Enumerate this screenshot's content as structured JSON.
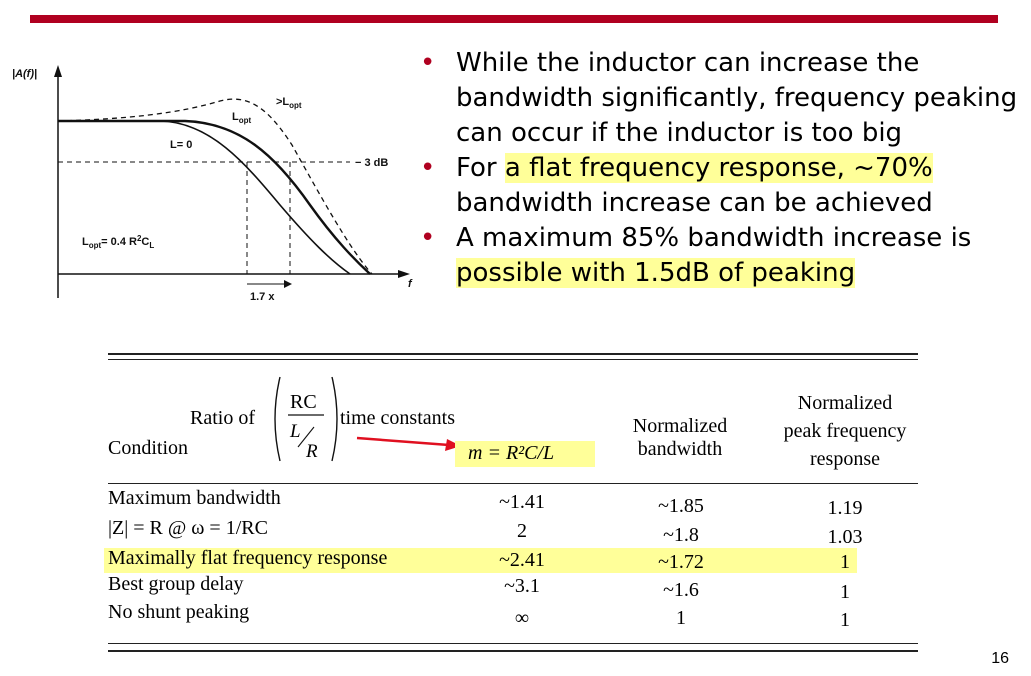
{
  "figure": {
    "y_axis_label": "|A(f)|",
    "x_axis_label": "f",
    "label_gt_lopt": ">L",
    "label_gt_lopt_sub": "opt",
    "label_lopt": "L",
    "label_lopt_sub": "opt",
    "label_l0": "L= 0",
    "label_3db": "− 3 dB",
    "label_formula_lhs": "L",
    "label_formula_sub": "opt",
    "label_formula_rhs": "= 0.4 R",
    "label_formula_exp": "2",
    "label_formula_c": "C",
    "label_formula_c_sub": "L",
    "label_17x": "1.7 x"
  },
  "bullets": [
    {
      "text": "While the inductor can increase the bandwidth significantly, frequency peaking can occur if the inductor is too big"
    },
    {
      "pre": "For ",
      "highlight": "a flat frequency response, ~70%",
      "post": " bandwidth increase can be achieved"
    },
    {
      "pre": "A maximum 85% bandwidth increase is ",
      "highlight": "possible with 1.5dB of peaking",
      "post": ""
    }
  ],
  "table": {
    "ratio_prefix": "Ratio of",
    "ratio_num": "RC",
    "ratio_den_top": "L",
    "ratio_den_bot": "R",
    "ratio_suffix": "time constants",
    "col_condition": "Condition",
    "col_m": "m = R²C/L",
    "col_bw_line1": "Normalized",
    "col_bw_line2": "bandwidth",
    "col_peak_line1": "Normalized",
    "col_peak_line2": "peak frequency",
    "col_peak_line3": "response",
    "rows": [
      {
        "condition": "Maximum bandwidth",
        "m": "~1.41",
        "bw": "~1.85",
        "peak": "1.19"
      },
      {
        "condition": "|Z| = R @ ω = 1/RC",
        "m": "2",
        "bw": "~1.8",
        "peak": "1.03"
      },
      {
        "condition": "Maximally flat frequency response",
        "m": "~2.41",
        "bw": "~1.72",
        "peak": "1"
      },
      {
        "condition": "Best group delay",
        "m": "~3.1",
        "bw": "~1.6",
        "peak": "1"
      },
      {
        "condition": "No shunt peaking",
        "m": "∞",
        "bw": "1",
        "peak": "1"
      }
    ]
  },
  "colors": {
    "accent": "#b00020",
    "highlight": "#ffff99",
    "arrow": "#e01020"
  },
  "page_number": "16"
}
